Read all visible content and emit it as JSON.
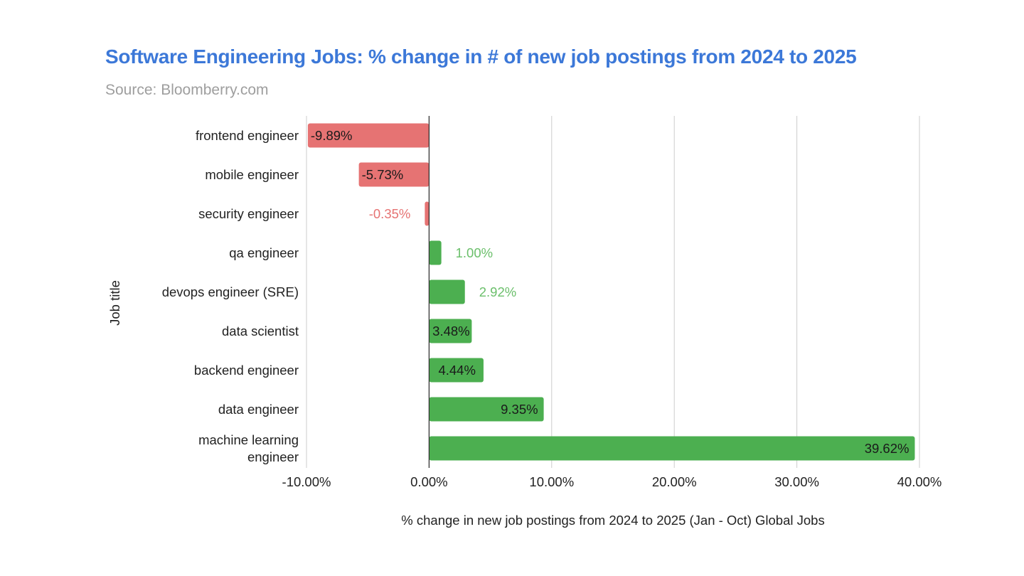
{
  "header": {
    "title": "Software Engineering Jobs: % change in # of new job postings from 2024 to 2025",
    "subtitle": "Source: Bloomberry.com"
  },
  "colors": {
    "title": "#3c78d8",
    "subtitle": "#9e9e9e",
    "negative_bar": "#e67373",
    "positive_bar": "#4caf50",
    "negative_outside_label": "#e67373",
    "positive_outside_label": "#6bbf6b",
    "inside_label": "#1a1a1a",
    "gridline": "#cccccc",
    "zero_line": "#333333"
  },
  "chart_data": {
    "type": "bar",
    "orientation": "horizontal",
    "title": "Software Engineering Jobs: % change in # of new job postings from 2024 to 2025",
    "subtitle": "Source: Bloomberry.com",
    "xlabel": "% change in new job postings from 2024 to 2025 (Jan - Oct) Global Jobs",
    "ylabel": "Job title",
    "categories": [
      [
        "frontend engineer"
      ],
      [
        "mobile engineer"
      ],
      [
        "security engineer"
      ],
      [
        "qa engineer"
      ],
      [
        "devops engineer (SRE)"
      ],
      [
        "data scientist"
      ],
      [
        "backend engineer"
      ],
      [
        "data engineer"
      ],
      [
        "machine learning",
        "engineer"
      ]
    ],
    "values": [
      -9.89,
      -5.73,
      -0.35,
      1.0,
      2.92,
      3.48,
      4.44,
      9.35,
      39.62
    ],
    "value_labels": [
      "-9.89%",
      "-5.73%",
      "-0.35%",
      "1.00%",
      "2.92%",
      "3.48%",
      "4.44%",
      "9.35%",
      "39.62%"
    ],
    "xlim": [
      -10,
      40
    ],
    "x_ticks": [
      -10,
      0,
      10,
      20,
      30,
      40
    ],
    "x_tick_labels": [
      "-10.00%",
      "0.00%",
      "10.00%",
      "20.00%",
      "30.00%",
      "40.00%"
    ],
    "grid": true,
    "legend": "none"
  }
}
